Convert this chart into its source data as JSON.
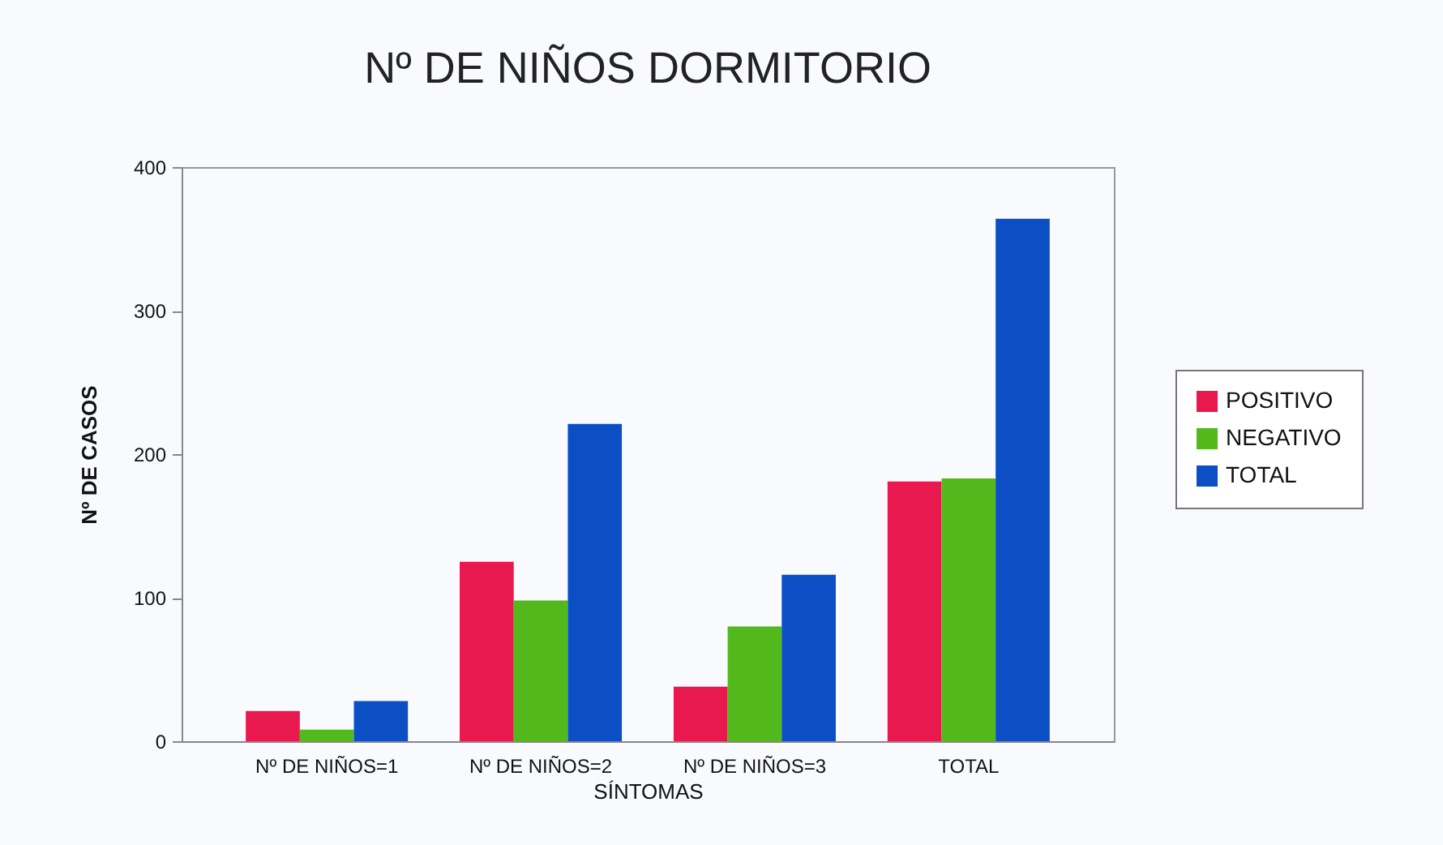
{
  "chart_data": {
    "type": "bar",
    "title": "Nº DE NIÑOS DORMITORIO",
    "xlabel": "SÍNTOMAS",
    "ylabel": "Nº DE CASOS",
    "categories": [
      "Nº DE NIÑOS=1",
      "Nº DE NIÑOS=2",
      "Nº DE NIÑOS=3",
      "TOTAL"
    ],
    "series": [
      {
        "name": "POSITIVO",
        "color": "#e8194f",
        "values": [
          21,
          125,
          38,
          181
        ]
      },
      {
        "name": "NEGATIVO",
        "color": "#52b81c",
        "values": [
          8,
          98,
          80,
          183
        ]
      },
      {
        "name": "TOTAL",
        "color": "#0c4fc4",
        "values": [
          28,
          221,
          116,
          364
        ]
      }
    ],
    "ylim": [
      0,
      400
    ],
    "yticks": [
      0,
      100,
      200,
      300,
      400
    ],
    "legend": "right"
  }
}
